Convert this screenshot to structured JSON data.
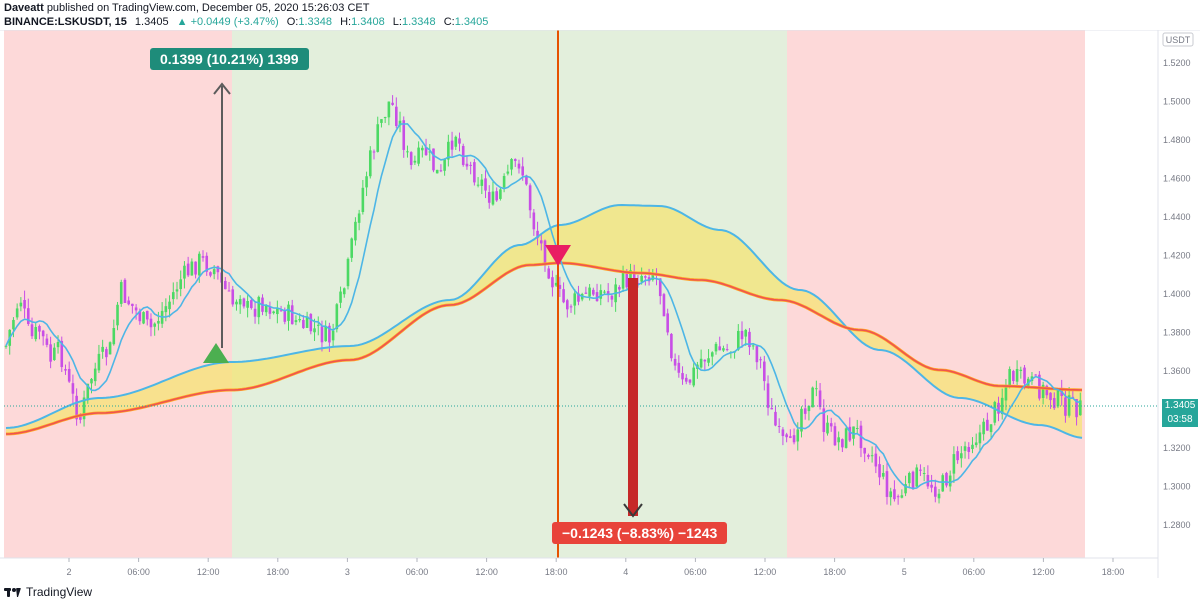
{
  "header": {
    "publisher": "Daveatt",
    "published_text": "published on TradingView.com, December 05, 2020 15:26:03 CET",
    "symbol": "BINANCE:LSKUSDT, 15",
    "last": "1.3405",
    "change": "▲ +0.0449 (+3.47%)",
    "open_label": "O:",
    "open_value": "1.3348",
    "high_label": "H:",
    "high_value": "1.3408",
    "low_label": "L:",
    "low_value": "1.3348",
    "close_label": "C:",
    "close_value": "1.3405"
  },
  "price_axis": {
    "currency_badge": "USDT",
    "ticks": [
      "1.5200",
      "1.5000",
      "1.4800",
      "1.4600",
      "1.4400",
      "1.4200",
      "1.4000",
      "1.3800",
      "1.3600",
      "1.3400",
      "1.3200",
      "1.3000",
      "1.2800"
    ],
    "current_price": "1.3405",
    "countdown": "03:58"
  },
  "time_axis": {
    "ticks": [
      "2",
      "06:00",
      "12:00",
      "18:00",
      "3",
      "06:00",
      "12:00",
      "18:00",
      "4",
      "06:00",
      "12:00",
      "18:00",
      "5",
      "06:00",
      "12:00",
      "18:00"
    ]
  },
  "annotations": {
    "gain_label": "0.1399 (10.21%) 1399",
    "loss_label": "−0.1243 (−8.83%) −1243"
  },
  "colors": {
    "bull_candle": "#4cd964",
    "bear_candle": "#c84ee6",
    "fast_ma": "#4db6e6",
    "slow_ma": "#ef5350",
    "slow_ma_outline": "#ffa726",
    "cloud": "#f5e46e",
    "long_zone": "#e3efdc",
    "short_zone": "#fdd9d9",
    "gain_label_bg": "#1e8c7a",
    "loss_label_bg": "#e8433a",
    "signal_line": "#e65100",
    "buy_marker": "#4caf50",
    "sell_marker": "#e91e63"
  },
  "footer": {
    "brand": "TradingView"
  }
}
